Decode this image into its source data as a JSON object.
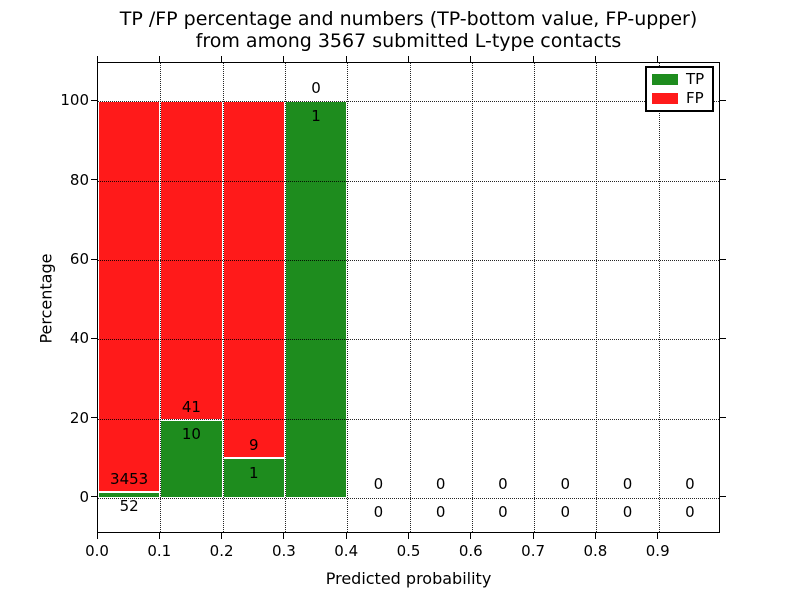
{
  "figure": {
    "title_line1": "TP /FP percentage and numbers (TP-bottom value, FP-upper)",
    "title_line2": "from among 3567 submitted L-type contacts",
    "background": "#ffffff"
  },
  "chart_data": {
    "type": "bar",
    "stacked": true,
    "title": "TP /FP percentage and numbers (TP-bottom value, FP-upper)\nfrom among 3567 submitted L-type contacts",
    "xlabel": "Predicted probability",
    "ylabel": "Percentage",
    "xlim": [
      0.0,
      1.0
    ],
    "ylim": [
      -9.1,
      109.7
    ],
    "xticks": [
      "0.0",
      "0.1",
      "0.2",
      "0.3",
      "0.4",
      "0.5",
      "0.6",
      "0.7",
      "0.8",
      "0.9"
    ],
    "yticks": [
      0,
      20,
      40,
      60,
      80,
      100
    ],
    "grid": true,
    "grid_style": "dotted",
    "bin_width": 0.1,
    "series_note": "TP percentage on bottom (green), FP percentage stacked above (red); labels show raw counts: FP count above green top, TP count below it",
    "bins": [
      {
        "range": [
          0.0,
          0.1
        ],
        "tp": 52,
        "fp": 3453,
        "tp_pct": 1.48,
        "fp_pct": 98.52
      },
      {
        "range": [
          0.1,
          0.2
        ],
        "tp": 10,
        "fp": 41,
        "tp_pct": 19.61,
        "fp_pct": 80.39
      },
      {
        "range": [
          0.2,
          0.3
        ],
        "tp": 1,
        "fp": 9,
        "tp_pct": 10.0,
        "fp_pct": 90.0
      },
      {
        "range": [
          0.3,
          0.4
        ],
        "tp": 1,
        "fp": 0,
        "tp_pct": 100.0,
        "fp_pct": 0.0
      },
      {
        "range": [
          0.4,
          0.5
        ],
        "tp": 0,
        "fp": 0,
        "tp_pct": 0,
        "fp_pct": 0
      },
      {
        "range": [
          0.5,
          0.6
        ],
        "tp": 0,
        "fp": 0,
        "tp_pct": 0,
        "fp_pct": 0
      },
      {
        "range": [
          0.6,
          0.7
        ],
        "tp": 0,
        "fp": 0,
        "tp_pct": 0,
        "fp_pct": 0
      },
      {
        "range": [
          0.7,
          0.8
        ],
        "tp": 0,
        "fp": 0,
        "tp_pct": 0,
        "fp_pct": 0
      },
      {
        "range": [
          0.8,
          0.9
        ],
        "tp": 0,
        "fp": 0,
        "tp_pct": 0,
        "fp_pct": 0
      },
      {
        "range": [
          0.9,
          1.0
        ],
        "tp": 0,
        "fp": 0,
        "tp_pct": 0,
        "fp_pct": 0
      }
    ],
    "label_offset_pct": {
      "fp": 3.4,
      "tp": -3.6
    },
    "colors": {
      "tp": "#1e8c1e",
      "fp": "#ff1a1a",
      "grid": "#000000",
      "bar_edge": "#ffffff",
      "text": "#000000"
    },
    "legend": {
      "position": "upper right",
      "entries": [
        {
          "label": "TP",
          "color": "#1e8c1e"
        },
        {
          "label": "FP",
          "color": "#ff1a1a"
        }
      ]
    }
  }
}
